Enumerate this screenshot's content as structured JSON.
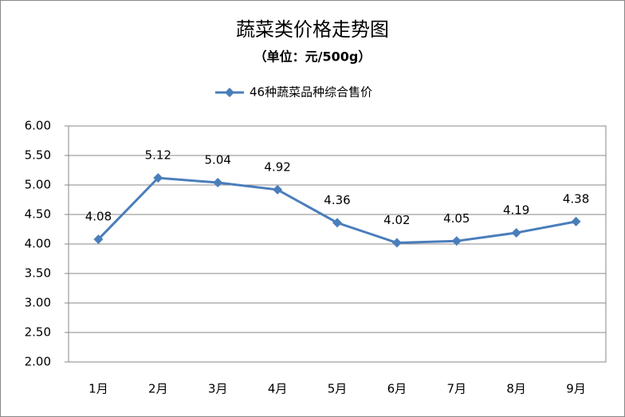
{
  "chart_data": {
    "type": "line",
    "title": "蔬菜类价格走势图",
    "subtitle": "（单位：元/500g）",
    "categories": [
      "1月",
      "2月",
      "3月",
      "4月",
      "5月",
      "6月",
      "7月",
      "8月",
      "9月"
    ],
    "series": [
      {
        "name": "46种蔬菜品种综合售价",
        "color": "#4a7ebb",
        "values": [
          4.08,
          5.12,
          5.04,
          4.92,
          4.36,
          4.02,
          4.05,
          4.19,
          4.38
        ]
      }
    ],
    "ylim": [
      2,
      6
    ],
    "yticks": [
      {
        "value": 2,
        "label": "2.00"
      },
      {
        "value": 2.5,
        "label": "2.50"
      },
      {
        "value": 3,
        "label": "3.00"
      },
      {
        "value": 3.5,
        "label": "3.50"
      },
      {
        "value": 4,
        "label": "4.00"
      },
      {
        "value": 4.5,
        "label": "4.50"
      },
      {
        "value": 5,
        "label": "5.00"
      },
      {
        "value": 5.5,
        "label": "5.50"
      },
      {
        "value": 6,
        "label": "6.00"
      }
    ],
    "grid": true,
    "legend": "top"
  }
}
